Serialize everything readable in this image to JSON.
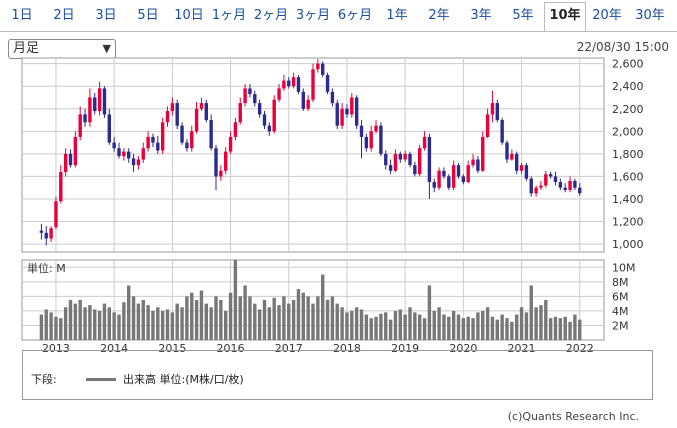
{
  "tabs": [
    {
      "label": "1日"
    },
    {
      "label": "2日"
    },
    {
      "label": "3日"
    },
    {
      "label": "5日"
    },
    {
      "label": "10日"
    },
    {
      "label": "1ヶ月"
    },
    {
      "label": "2ヶ月"
    },
    {
      "label": "3ヶ月"
    },
    {
      "label": "6ヶ月"
    },
    {
      "label": "1年"
    },
    {
      "label": "2年"
    },
    {
      "label": "3年"
    },
    {
      "label": "5年"
    },
    {
      "label": "10年"
    },
    {
      "label": "20年"
    },
    {
      "label": "30年"
    }
  ],
  "active_tab": "10年",
  "period_select": {
    "value": "月足"
  },
  "timestamp": "22/08/30 15:00",
  "legend": {
    "prefix": "下段:",
    "label": "出来高 単位:(M株/口/枚)"
  },
  "copyright": "(c)Quants Research Inc.",
  "colors": {
    "up": "#e8003c",
    "down": "#2b2b8f",
    "volume": "#777777",
    "grid": "#cccccc"
  },
  "chart_data": [
    {
      "type": "candlestick",
      "title": "",
      "x_ticks": [
        "2013",
        "2014",
        "2015",
        "2016",
        "2017",
        "2018",
        "2019",
        "2020",
        "2021",
        "2022"
      ],
      "y_ticks": [
        "2,600",
        "2,400",
        "2,200",
        "2,000",
        "1,800",
        "1,600",
        "1,400",
        "1,200",
        "1,000"
      ],
      "ylim": [
        930,
        2650
      ],
      "start_month": "2012-09",
      "grid": true,
      "series": [
        {
          "close": [
            1100,
            1050,
            1140,
            1380,
            1640,
            1800,
            1700,
            1950,
            2150,
            2080,
            2300,
            2180,
            2380,
            2150,
            1900,
            1850,
            1780,
            1820,
            1760,
            1700,
            1750,
            1850,
            1950,
            1900,
            1830,
            2080,
            2180,
            2250,
            2050,
            1900,
            1850,
            2000,
            2200,
            2250,
            2100,
            1850,
            1600,
            1650,
            1820,
            1950,
            2080,
            2250,
            2380,
            2330,
            2250,
            2150,
            2050,
            2000,
            2280,
            2380,
            2450,
            2400,
            2480,
            2350,
            2200,
            2280,
            2550,
            2600,
            2500,
            2350,
            2250,
            2050,
            2200,
            2150,
            2300,
            2050,
            1950,
            1850,
            2000,
            2050,
            1800,
            1700,
            1650,
            1800,
            1750,
            1800,
            1700,
            1620,
            1850,
            1950,
            1550,
            1500,
            1650,
            1600,
            1500,
            1700,
            1600,
            1550,
            1700,
            1750,
            1650,
            1950,
            2150,
            2250,
            2100,
            1900,
            1750,
            1800,
            1650,
            1700,
            1580,
            1450,
            1500,
            1520,
            1620,
            1600,
            1550,
            1500,
            1480,
            1560,
            1500,
            1450
          ]
        }
      ],
      "open": [
        1120,
        1100,
        1050,
        1150,
        1380,
        1640,
        1800,
        1700,
        1950,
        2150,
        2080,
        2300,
        2180,
        2380,
        2150,
        1900,
        1850,
        1780,
        1820,
        1760,
        1700,
        1750,
        1850,
        1950,
        1900,
        1830,
        2080,
        2180,
        2250,
        2050,
        1900,
        1850,
        2000,
        2200,
        2250,
        2100,
        1850,
        1600,
        1650,
        1820,
        1950,
        2080,
        2250,
        2380,
        2330,
        2250,
        2150,
        2050,
        2000,
        2280,
        2380,
        2450,
        2400,
        2480,
        2350,
        2200,
        2280,
        2550,
        2600,
        2500,
        2350,
        2250,
        2050,
        2200,
        2150,
        2300,
        2050,
        1950,
        1850,
        2000,
        2050,
        1800,
        1700,
        1650,
        1800,
        1750,
        1800,
        1700,
        1620,
        1850,
        1950,
        1550,
        1500,
        1650,
        1600,
        1500,
        1700,
        1600,
        1550,
        1700,
        1750,
        1650,
        1950,
        2150,
        2250,
        2100,
        1900,
        1750,
        1800,
        1650,
        1700,
        1580,
        1450,
        1500,
        1520,
        1620,
        1600,
        1550,
        1500,
        1480,
        1560,
        1500
      ],
      "high": [
        1180,
        1160,
        1160,
        1420,
        1700,
        1850,
        1840,
        2000,
        2220,
        2200,
        2380,
        2340,
        2440,
        2400,
        2200,
        1950,
        1900,
        1850,
        1850,
        1800,
        1780,
        1900,
        2000,
        1980,
        1960,
        2120,
        2220,
        2300,
        2280,
        2080,
        1930,
        2050,
        2260,
        2300,
        2280,
        2150,
        1880,
        1700,
        1860,
        2000,
        2120,
        2300,
        2420,
        2420,
        2360,
        2280,
        2180,
        2080,
        2320,
        2420,
        2500,
        2480,
        2520,
        2500,
        2380,
        2320,
        2600,
        2640,
        2620,
        2520,
        2380,
        2280,
        2250,
        2240,
        2340,
        2320,
        2100,
        1980,
        2050,
        2100,
        2080,
        1830,
        1750,
        1840,
        1820,
        1830,
        1820,
        1730,
        1880,
        2000,
        1980,
        1580,
        1680,
        1680,
        1620,
        1740,
        1720,
        1620,
        1740,
        1800,
        1780,
        2000,
        2200,
        2360,
        2280,
        2120,
        1920,
        1840,
        1820,
        1720,
        1720,
        1600,
        1520,
        1560,
        1650,
        1640,
        1640,
        1580,
        1540,
        1600,
        1580,
        1540
      ],
      "low": [
        1040,
        990,
        1020,
        1130,
        1360,
        1600,
        1680,
        1680,
        1920,
        2040,
        2040,
        2150,
        2140,
        2120,
        1880,
        1820,
        1760,
        1740,
        1720,
        1640,
        1660,
        1720,
        1820,
        1860,
        1800,
        1800,
        2040,
        2140,
        2020,
        1880,
        1820,
        1820,
        1980,
        2180,
        2080,
        1830,
        1480,
        1560,
        1620,
        1800,
        1920,
        2060,
        2220,
        2300,
        2220,
        2120,
        2020,
        1960,
        1980,
        2260,
        2360,
        2380,
        2380,
        2330,
        2180,
        2180,
        2260,
        2520,
        2480,
        2330,
        2220,
        2020,
        2020,
        2120,
        2120,
        2020,
        1760,
        1820,
        1820,
        1980,
        1780,
        1660,
        1620,
        1640,
        1720,
        1730,
        1680,
        1600,
        1600,
        1830,
        1400,
        1460,
        1480,
        1580,
        1480,
        1480,
        1580,
        1530,
        1540,
        1680,
        1630,
        1640,
        1940,
        2080,
        2080,
        1880,
        1720,
        1740,
        1620,
        1620,
        1560,
        1420,
        1420,
        1480,
        1500,
        1580,
        1520,
        1480,
        1460,
        1460,
        1480,
        1430
      ]
    },
    {
      "type": "bar",
      "title": "",
      "ylabel": "単位: M",
      "y_ticks": [
        "10M",
        "8M",
        "6M",
        "4M",
        "2M"
      ],
      "ylim": [
        0,
        11
      ],
      "series": [
        {
          "name": "出来高",
          "values": [
            3.5,
            4.2,
            3.8,
            3.2,
            3.0,
            4.5,
            5.5,
            5.0,
            5.5,
            4.5,
            4.8,
            4.2,
            4.0,
            5.0,
            4.5,
            3.8,
            3.5,
            5.2,
            7.5,
            6.0,
            5.0,
            5.5,
            4.8,
            4.0,
            4.5,
            4.0,
            4.2,
            3.8,
            5.0,
            4.5,
            6.0,
            6.5,
            5.5,
            6.8,
            5.0,
            4.5,
            6.0,
            5.5,
            4.0,
            6.5,
            11.0,
            6.0,
            7.5,
            6.0,
            5.0,
            4.2,
            5.5,
            4.5,
            5.8,
            4.8,
            6.0,
            5.0,
            5.5,
            7.0,
            6.5,
            6.0,
            5.0,
            6.0,
            9.0,
            5.5,
            6.0,
            5.0,
            4.5,
            3.8,
            4.0,
            4.5,
            4.2,
            3.5,
            3.0,
            3.2,
            3.6,
            3.8,
            2.8,
            4.0,
            4.2,
            3.5,
            4.5,
            3.8,
            3.5,
            3.0,
            7.5,
            4.0,
            4.5,
            3.5,
            3.2,
            4.0,
            3.5,
            3.0,
            3.2,
            3.0,
            3.8,
            4.0,
            4.5,
            3.2,
            2.8,
            3.5,
            3.0,
            2.5,
            3.5,
            4.5,
            3.8,
            7.5,
            4.5,
            4.8,
            5.5,
            3.0,
            3.2,
            3.0,
            3.2,
            2.5,
            3.5,
            2.8
          ]
        }
      ]
    }
  ]
}
